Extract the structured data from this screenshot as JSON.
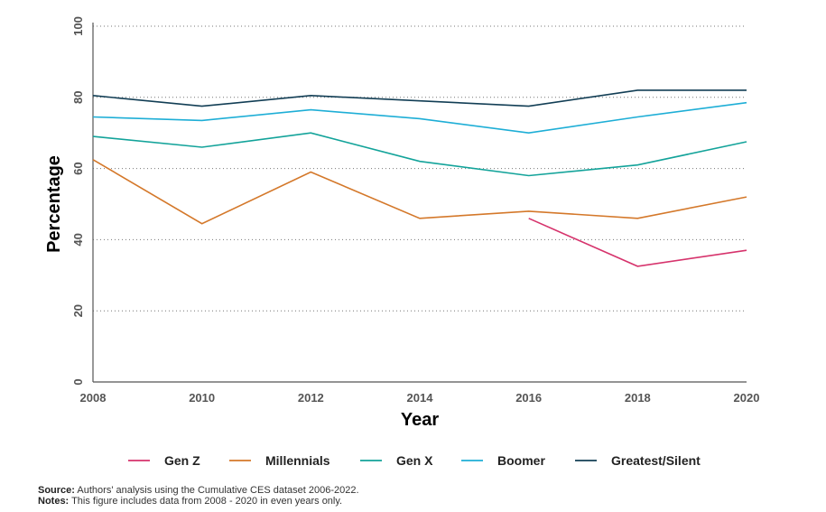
{
  "chart_data": {
    "type": "line",
    "title": "",
    "xlabel": "Year",
    "ylabel": "Percentage",
    "x": [
      2008,
      2010,
      2012,
      2014,
      2016,
      2018,
      2020
    ],
    "xlim": [
      2008,
      2020
    ],
    "ylim": [
      0,
      100
    ],
    "x_ticks": [
      "2008",
      "2010",
      "2012",
      "2014",
      "2016",
      "2018",
      "2020"
    ],
    "y_ticks": [
      "0",
      "20",
      "40",
      "60",
      "80",
      "100"
    ],
    "grid": "horizontal dotted",
    "legend_position": "bottom",
    "series": [
      {
        "name": "Gen Z",
        "color": "#d6336c",
        "values": [
          null,
          null,
          null,
          null,
          46,
          32.5,
          37
        ]
      },
      {
        "name": "Millennials",
        "color": "#d4782a",
        "values": [
          62.5,
          44.5,
          59,
          46,
          48,
          46,
          52
        ]
      },
      {
        "name": "Gen X",
        "color": "#13a39a",
        "values": [
          69,
          66,
          70,
          62,
          58,
          61,
          67.5
        ]
      },
      {
        "name": "Boomer",
        "color": "#1eaed6",
        "values": [
          74.5,
          73.5,
          76.5,
          74,
          70,
          74.5,
          78.5
        ]
      },
      {
        "name": "Greatest/Silent",
        "color": "#123e55",
        "values": [
          80.5,
          77.5,
          80.5,
          79,
          77.5,
          82,
          82
        ]
      }
    ]
  },
  "source": {
    "label": "Source:",
    "text": " Authors' analysis using the Cumulative CES dataset 2006-2022."
  },
  "notes": {
    "label": "Notes:",
    "text": " This figure includes data from 2008 - 2020 in even years only."
  }
}
